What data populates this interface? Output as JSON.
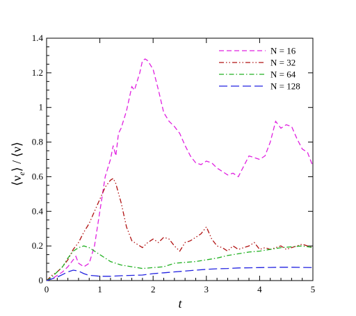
{
  "chart_data": {
    "type": "line",
    "title": "",
    "xlabel": "t",
    "ylabel_parts": [
      "⟨ν",
      "e",
      "⟩ / ⟨ν⟩"
    ],
    "xlim": [
      0,
      5
    ],
    "ylim": [
      0,
      1.4
    ],
    "xticks": [
      0,
      1,
      2,
      3,
      4,
      5
    ],
    "yticks": [
      0,
      0.2,
      0.4,
      0.6,
      0.8,
      1,
      1.2,
      1.4
    ],
    "xtick_labels": [
      "0",
      "1",
      "2",
      "3",
      "4",
      "5"
    ],
    "ytick_labels": [
      "0",
      "0.2",
      "0.4",
      "0.6",
      "0.8",
      "1",
      "1.2",
      "1.4"
    ],
    "grid": false,
    "legend_position": "top-right",
    "series": [
      {
        "name": "N = 16",
        "color": "#e020e0",
        "dash": "dashed",
        "x": [
          0,
          0.1,
          0.2,
          0.3,
          0.4,
          0.5,
          0.55,
          0.6,
          0.7,
          0.8,
          0.9,
          1.0,
          1.1,
          1.2,
          1.25,
          1.3,
          1.35,
          1.4,
          1.5,
          1.6,
          1.65,
          1.7,
          1.75,
          1.8,
          1.85,
          1.9,
          2.0,
          2.1,
          2.2,
          2.3,
          2.4,
          2.5,
          2.6,
          2.7,
          2.8,
          2.9,
          3.0,
          3.1,
          3.2,
          3.3,
          3.4,
          3.5,
          3.6,
          3.7,
          3.8,
          3.9,
          4.0,
          4.1,
          4.2,
          4.3,
          4.4,
          4.5,
          4.6,
          4.7,
          4.8,
          4.9,
          5.0
        ],
        "y": [
          0.0,
          0.01,
          0.03,
          0.05,
          0.08,
          0.12,
          0.14,
          0.1,
          0.08,
          0.1,
          0.2,
          0.4,
          0.6,
          0.7,
          0.78,
          0.72,
          0.85,
          0.88,
          0.98,
          1.12,
          1.1,
          1.15,
          1.2,
          1.27,
          1.28,
          1.27,
          1.22,
          1.1,
          0.97,
          0.92,
          0.89,
          0.85,
          0.78,
          0.72,
          0.68,
          0.67,
          0.69,
          0.68,
          0.65,
          0.63,
          0.61,
          0.62,
          0.6,
          0.66,
          0.72,
          0.71,
          0.7,
          0.72,
          0.8,
          0.92,
          0.88,
          0.9,
          0.89,
          0.82,
          0.76,
          0.74,
          0.66
        ]
      },
      {
        "name": "N = 32",
        "color": "#b01010",
        "dash": "dashdotdot",
        "x": [
          0,
          0.1,
          0.2,
          0.3,
          0.4,
          0.5,
          0.6,
          0.7,
          0.8,
          0.9,
          1.0,
          1.1,
          1.2,
          1.25,
          1.3,
          1.4,
          1.5,
          1.6,
          1.7,
          1.8,
          1.9,
          2.0,
          2.1,
          2.2,
          2.3,
          2.4,
          2.5,
          2.6,
          2.7,
          2.8,
          2.9,
          3.0,
          3.1,
          3.2,
          3.3,
          3.4,
          3.5,
          3.6,
          3.7,
          3.8,
          3.9,
          4.0,
          4.1,
          4.2,
          4.3,
          4.4,
          4.5,
          4.6,
          4.7,
          4.8,
          4.9,
          5.0
        ],
        "y": [
          0.0,
          0.03,
          0.05,
          0.08,
          0.12,
          0.18,
          0.22,
          0.28,
          0.33,
          0.4,
          0.47,
          0.54,
          0.58,
          0.59,
          0.56,
          0.45,
          0.31,
          0.23,
          0.21,
          0.19,
          0.22,
          0.24,
          0.22,
          0.25,
          0.24,
          0.2,
          0.17,
          0.22,
          0.23,
          0.25,
          0.27,
          0.31,
          0.24,
          0.2,
          0.19,
          0.17,
          0.2,
          0.18,
          0.19,
          0.2,
          0.22,
          0.18,
          0.19,
          0.18,
          0.19,
          0.2,
          0.18,
          0.19,
          0.2,
          0.21,
          0.2,
          0.19
        ]
      },
      {
        "name": "N = 64",
        "color": "#20b020",
        "dash": "dashdot",
        "x": [
          0,
          0.1,
          0.2,
          0.3,
          0.4,
          0.5,
          0.6,
          0.7,
          0.8,
          0.9,
          1.0,
          1.2,
          1.4,
          1.6,
          1.8,
          2.0,
          2.2,
          2.4,
          2.6,
          2.8,
          3.0,
          3.2,
          3.4,
          3.6,
          3.8,
          4.0,
          4.2,
          4.4,
          4.6,
          4.8,
          5.0
        ],
        "y": [
          0.0,
          0.02,
          0.05,
          0.08,
          0.13,
          0.17,
          0.19,
          0.2,
          0.19,
          0.17,
          0.15,
          0.11,
          0.09,
          0.08,
          0.07,
          0.075,
          0.08,
          0.1,
          0.105,
          0.11,
          0.12,
          0.13,
          0.145,
          0.155,
          0.165,
          0.17,
          0.18,
          0.19,
          0.195,
          0.2,
          0.19
        ]
      },
      {
        "name": "N = 128",
        "color": "#2020e0",
        "dash": "longdash",
        "x": [
          0,
          0.1,
          0.2,
          0.3,
          0.4,
          0.5,
          0.6,
          0.7,
          0.8,
          0.9,
          1.0,
          1.2,
          1.4,
          1.6,
          1.8,
          2.0,
          2.2,
          2.4,
          2.6,
          2.8,
          3.0,
          3.2,
          3.4,
          3.6,
          3.8,
          4.0,
          4.2,
          4.4,
          4.6,
          4.8,
          5.0
        ],
        "y": [
          0.0,
          0.01,
          0.02,
          0.035,
          0.05,
          0.06,
          0.055,
          0.04,
          0.03,
          0.028,
          0.025,
          0.025,
          0.028,
          0.03,
          0.032,
          0.04,
          0.045,
          0.05,
          0.055,
          0.06,
          0.065,
          0.068,
          0.07,
          0.073,
          0.074,
          0.075,
          0.076,
          0.077,
          0.077,
          0.076,
          0.075
        ]
      }
    ]
  }
}
